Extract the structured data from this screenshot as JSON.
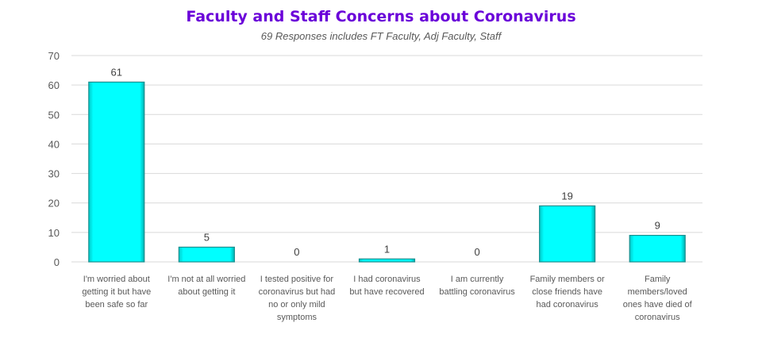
{
  "colors": {
    "title": "#6a00d9",
    "bar": "#00ffff",
    "bar_edge": "#1a8f8f",
    "grid": "#d9d9d9"
  },
  "chart_data": {
    "type": "bar",
    "title": "Faculty and Staff Concerns about Coronavirus",
    "subtitle": "69 Responses includes FT Faculty, Adj Faculty, Staff",
    "xlabel": "",
    "ylabel": "",
    "ylim": [
      0,
      70
    ],
    "yticks": [
      0,
      10,
      20,
      30,
      40,
      50,
      60,
      70
    ],
    "grid": true,
    "legend": "none",
    "categories": [
      [
        "I'm worried about",
        "getting it but have",
        "been safe so far"
      ],
      [
        "I'm not at all worried",
        "about getting it"
      ],
      [
        "I tested positive for",
        "coronavirus but had",
        "no or only mild",
        "symptoms"
      ],
      [
        "I had coronavirus",
        "but have recovered"
      ],
      [
        "I am currently",
        "battling coronavirus"
      ],
      [
        "Family members or",
        "close friends have",
        "had coronavirus"
      ],
      [
        "Family",
        "members/loved",
        "ones have died of",
        "coronavirus"
      ]
    ],
    "values": [
      61,
      5,
      0,
      1,
      0,
      19,
      9
    ]
  }
}
